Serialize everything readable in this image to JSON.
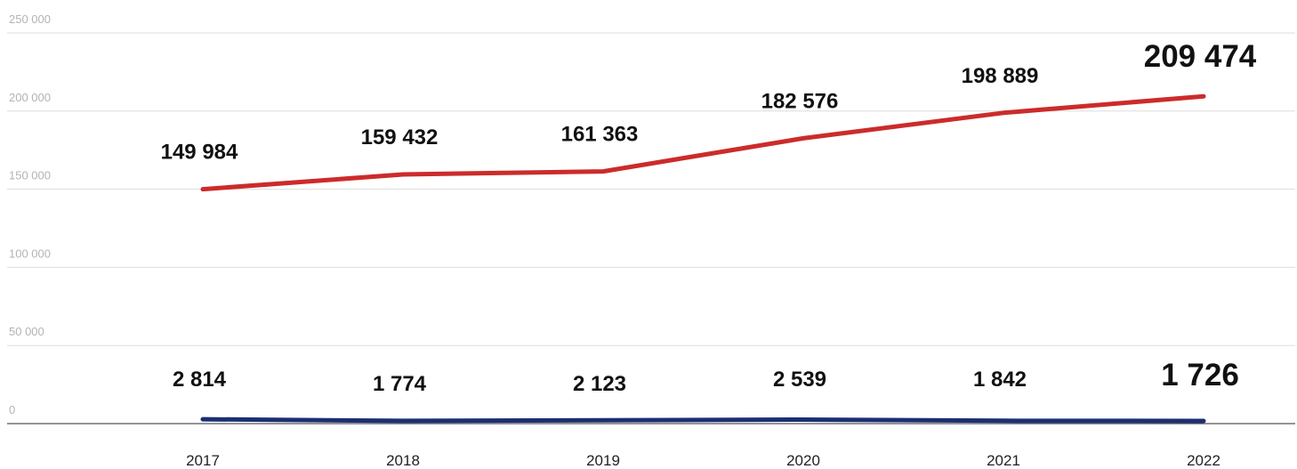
{
  "chart_data": {
    "type": "line",
    "categories": [
      "2017",
      "2018",
      "2019",
      "2020",
      "2021",
      "2022"
    ],
    "series": [
      {
        "values": [
          149984,
          159432,
          161363,
          182576,
          198889,
          209474
        ],
        "labels": [
          "149 984",
          "159 432",
          "161 363",
          "182 576",
          "198 889",
          "209 474"
        ],
        "color": "#cc2b2b"
      },
      {
        "values": [
          2814,
          1774,
          2123,
          2539,
          1842,
          1726
        ],
        "labels": [
          "2 814",
          "1 774",
          "2 123",
          "2 539",
          "1 842",
          "1 726"
        ],
        "color": "#1b2f73"
      }
    ],
    "yticks": [
      0,
      50000,
      100000,
      150000,
      200000,
      250000
    ],
    "ytick_labels": [
      "0",
      "50 000",
      "100 000",
      "150 000",
      "200 000",
      "250 000"
    ],
    "ylim": [
      0,
      250000
    ],
    "grid": true,
    "legend": false
  }
}
